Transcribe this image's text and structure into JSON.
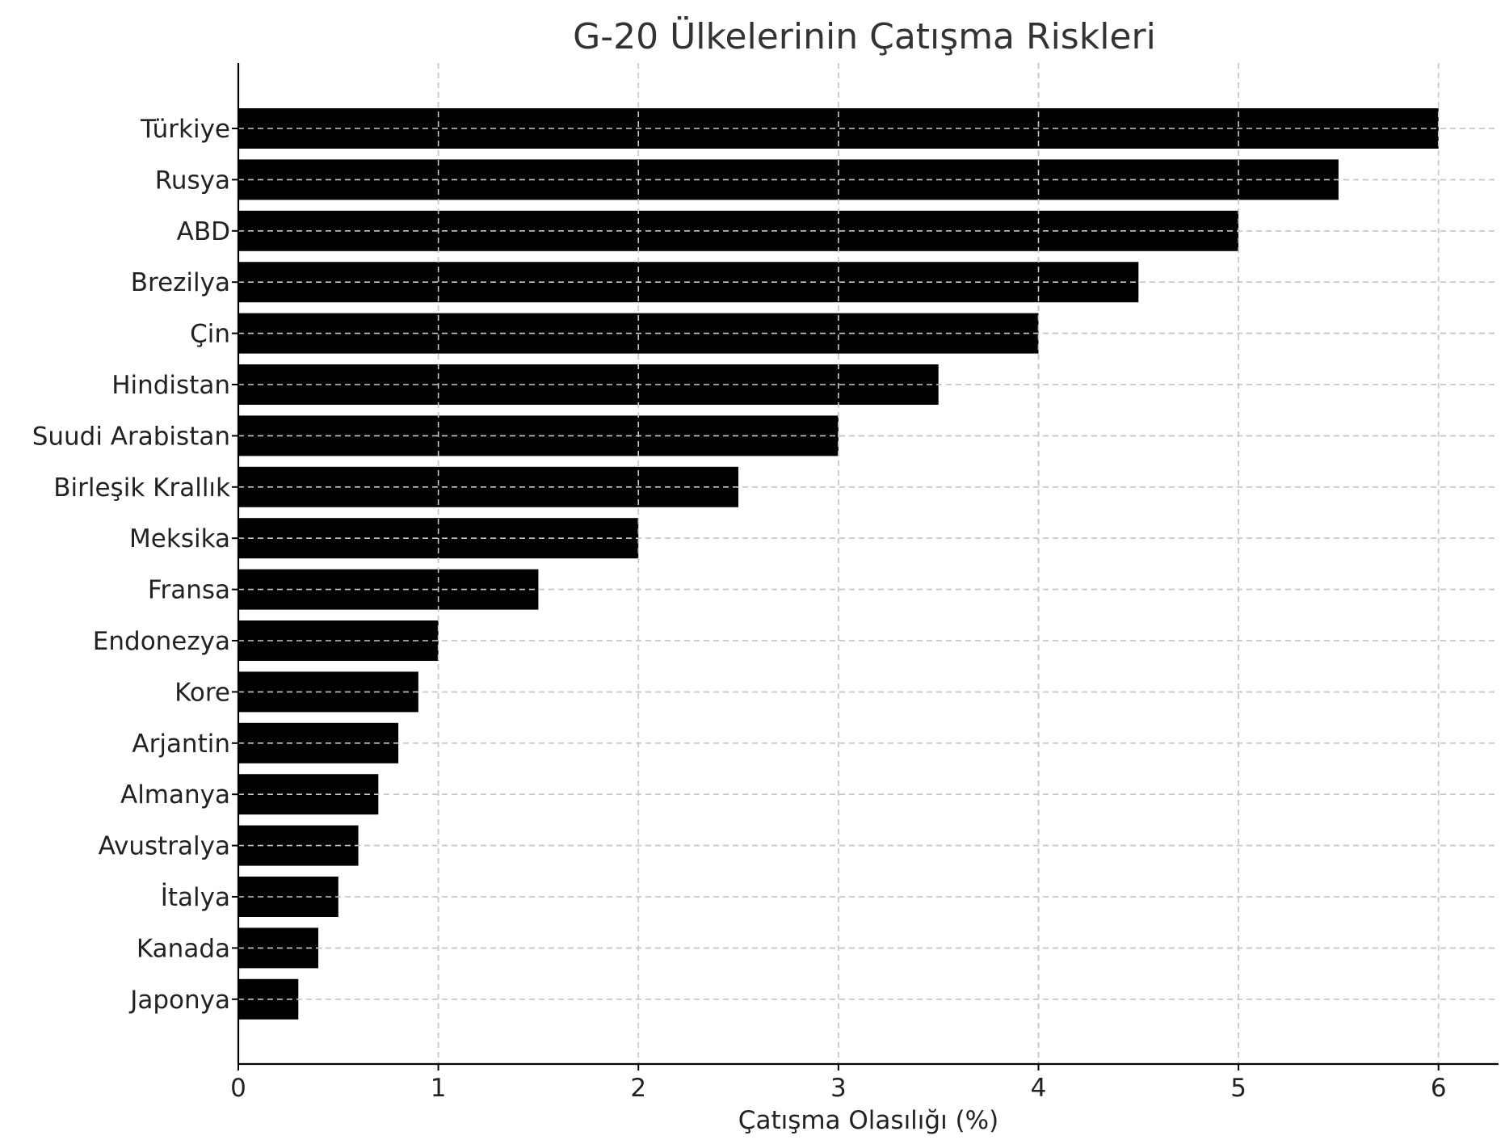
{
  "chart_data": {
    "type": "bar",
    "orientation": "horizontal",
    "title": "G-20 Ülkelerinin Çatışma Riskleri",
    "xlabel": "Çatışma Olasılığı (%)",
    "ylabel": "",
    "xlim": [
      0,
      6.3
    ],
    "xticks": [
      "0",
      "1",
      "2",
      "3",
      "4",
      "5",
      "6"
    ],
    "grid": true,
    "bar_color": "#000000",
    "categories": [
      "Türkiye",
      "Rusya",
      "ABD",
      "Brezilya",
      "Çin",
      "Hindistan",
      "Suudi Arabistan",
      "Birleşik Krallık",
      "Meksika",
      "Fransa",
      "Endonezya",
      "Kore",
      "Arjantin",
      "Almanya",
      "Avustralya",
      "İtalya",
      "Kanada",
      "Japonya"
    ],
    "values": [
      6.0,
      5.5,
      5.0,
      4.5,
      4.0,
      3.5,
      3.0,
      2.5,
      2.0,
      1.5,
      1.0,
      0.9,
      0.8,
      0.7,
      0.6,
      0.5,
      0.4,
      0.3
    ]
  }
}
